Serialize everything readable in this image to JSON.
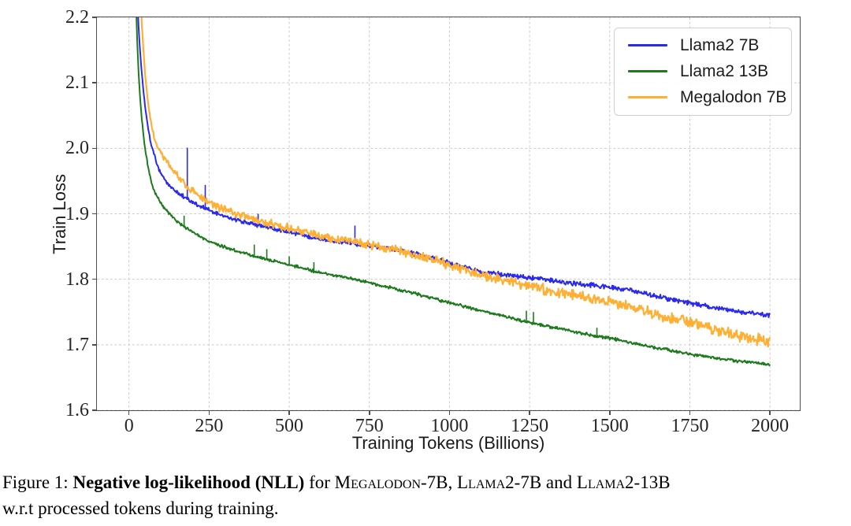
{
  "chart_data": {
    "type": "line",
    "title": "",
    "xlabel": "Training Tokens (Billions)",
    "ylabel": "Train Loss",
    "xlim": [
      -100,
      2093
    ],
    "ylim": [
      1.6,
      2.2
    ],
    "xticks": [
      0,
      250,
      500,
      750,
      1000,
      1250,
      1500,
      1750,
      2000
    ],
    "xtick_labels": [
      "0",
      "250",
      "500",
      "750",
      "1000",
      "1250",
      "1500",
      "1750",
      "2000"
    ],
    "yticks": [
      1.6,
      1.7,
      1.8,
      1.9,
      2.0,
      2.1,
      2.2
    ],
    "ytick_labels": [
      "1.6",
      "1.7",
      "1.8",
      "1.9",
      "2.0",
      "2.1",
      "2.2"
    ],
    "grid": "dashed",
    "grid_color": "#cccccc",
    "axis_color": "#4d4d4d",
    "legend_position": "upper right",
    "series": [
      {
        "name": "Llama2 7B",
        "color": "#2a2aee",
        "line_width": 2,
        "noise_amp": [
          0.004,
          0.0045
        ],
        "points": [
          [
            8,
            2.92
          ],
          [
            12,
            2.62
          ],
          [
            16,
            2.44
          ],
          [
            20,
            2.32
          ],
          [
            25,
            2.24
          ],
          [
            30,
            2.185
          ],
          [
            35,
            2.145
          ],
          [
            40,
            2.115
          ],
          [
            45,
            2.088
          ],
          [
            50,
            2.065
          ],
          [
            60,
            2.03
          ],
          [
            70,
            2.003
          ],
          [
            80,
            1.988
          ],
          [
            90,
            1.972
          ],
          [
            100,
            1.96
          ],
          [
            115,
            1.95
          ],
          [
            130,
            1.941
          ],
          [
            150,
            1.933
          ],
          [
            175,
            1.925
          ],
          [
            200,
            1.917
          ],
          [
            225,
            1.911
          ],
          [
            250,
            1.905
          ],
          [
            275,
            1.9
          ],
          [
            300,
            1.896
          ],
          [
            325,
            1.892
          ],
          [
            350,
            1.889
          ],
          [
            375,
            1.886
          ],
          [
            400,
            1.883
          ],
          [
            425,
            1.88
          ],
          [
            450,
            1.878
          ],
          [
            475,
            1.875
          ],
          [
            500,
            1.872
          ],
          [
            550,
            1.867
          ],
          [
            600,
            1.862
          ],
          [
            650,
            1.858
          ],
          [
            700,
            1.855
          ],
          [
            750,
            1.852
          ],
          [
            800,
            1.848
          ],
          [
            850,
            1.843
          ],
          [
            900,
            1.838
          ],
          [
            950,
            1.832
          ],
          [
            1000,
            1.825
          ],
          [
            1050,
            1.818
          ],
          [
            1100,
            1.812
          ],
          [
            1150,
            1.808
          ],
          [
            1200,
            1.805
          ],
          [
            1250,
            1.802
          ],
          [
            1300,
            1.799
          ],
          [
            1350,
            1.796
          ],
          [
            1400,
            1.793
          ],
          [
            1450,
            1.791
          ],
          [
            1500,
            1.788
          ],
          [
            1550,
            1.784
          ],
          [
            1600,
            1.779
          ],
          [
            1650,
            1.774
          ],
          [
            1700,
            1.768
          ],
          [
            1750,
            1.764
          ],
          [
            1800,
            1.759
          ],
          [
            1850,
            1.754
          ],
          [
            1900,
            1.751
          ],
          [
            1950,
            1.748
          ],
          [
            2000,
            1.745
          ]
        ],
        "spikes": [
          [
            182,
            2.001
          ],
          [
            238,
            1.944
          ],
          [
            403,
            1.9
          ],
          [
            705,
            1.882
          ]
        ]
      },
      {
        "name": "Llama2 13B",
        "color": "#1d7a1d",
        "line_width": 2,
        "noise_amp": [
          0.0028,
          0.0028
        ],
        "points": [
          [
            6,
            2.9
          ],
          [
            10,
            2.58
          ],
          [
            14,
            2.42
          ],
          [
            18,
            2.3
          ],
          [
            22,
            2.22
          ],
          [
            26,
            2.16
          ],
          [
            30,
            2.115
          ],
          [
            35,
            2.075
          ],
          [
            40,
            2.045
          ],
          [
            45,
            2.02
          ],
          [
            50,
            2.0
          ],
          [
            60,
            1.97
          ],
          [
            70,
            1.948
          ],
          [
            80,
            1.933
          ],
          [
            90,
            1.924
          ],
          [
            100,
            1.916
          ],
          [
            115,
            1.906
          ],
          [
            130,
            1.898
          ],
          [
            150,
            1.888
          ],
          [
            175,
            1.879
          ],
          [
            200,
            1.871
          ],
          [
            225,
            1.864
          ],
          [
            250,
            1.858
          ],
          [
            275,
            1.853
          ],
          [
            300,
            1.849
          ],
          [
            325,
            1.845
          ],
          [
            350,
            1.841
          ],
          [
            375,
            1.838
          ],
          [
            400,
            1.834
          ],
          [
            425,
            1.831
          ],
          [
            450,
            1.828
          ],
          [
            475,
            1.825
          ],
          [
            500,
            1.822
          ],
          [
            550,
            1.816
          ],
          [
            600,
            1.81
          ],
          [
            650,
            1.805
          ],
          [
            700,
            1.8
          ],
          [
            750,
            1.795
          ],
          [
            800,
            1.789
          ],
          [
            850,
            1.783
          ],
          [
            900,
            1.777
          ],
          [
            950,
            1.771
          ],
          [
            1000,
            1.764
          ],
          [
            1050,
            1.758
          ],
          [
            1100,
            1.752
          ],
          [
            1150,
            1.746
          ],
          [
            1200,
            1.74
          ],
          [
            1250,
            1.734
          ],
          [
            1300,
            1.729
          ],
          [
            1350,
            1.724
          ],
          [
            1400,
            1.719
          ],
          [
            1450,
            1.714
          ],
          [
            1500,
            1.71
          ],
          [
            1550,
            1.705
          ],
          [
            1600,
            1.7
          ],
          [
            1650,
            1.695
          ],
          [
            1700,
            1.69
          ],
          [
            1750,
            1.686
          ],
          [
            1800,
            1.682
          ],
          [
            1850,
            1.678
          ],
          [
            1900,
            1.675
          ],
          [
            1950,
            1.672
          ],
          [
            2000,
            1.67
          ]
        ],
        "spikes": [
          [
            172,
            1.897
          ],
          [
            391,
            1.853
          ],
          [
            430,
            1.846
          ],
          [
            500,
            1.835
          ],
          [
            577,
            1.826
          ],
          [
            1240,
            1.752
          ],
          [
            1262,
            1.75
          ],
          [
            1460,
            1.726
          ]
        ]
      },
      {
        "name": "Megalodon 7B",
        "color": "#ffaf33",
        "line_width": 2.2,
        "noise_amp": [
          0.006,
          0.011
        ],
        "points": [
          [
            10,
            2.95
          ],
          [
            15,
            2.7
          ],
          [
            20,
            2.52
          ],
          [
            25,
            2.4
          ],
          [
            30,
            2.31
          ],
          [
            35,
            2.245
          ],
          [
            40,
            2.19
          ],
          [
            45,
            2.15
          ],
          [
            50,
            2.115
          ],
          [
            60,
            2.067
          ],
          [
            70,
            2.035
          ],
          [
            80,
            2.012
          ],
          [
            90,
            2.0
          ],
          [
            100,
            1.993
          ],
          [
            115,
            1.982
          ],
          [
            130,
            1.971
          ],
          [
            150,
            1.958
          ],
          [
            175,
            1.945
          ],
          [
            200,
            1.934
          ],
          [
            225,
            1.925
          ],
          [
            250,
            1.917
          ],
          [
            275,
            1.911
          ],
          [
            300,
            1.906
          ],
          [
            325,
            1.901
          ],
          [
            350,
            1.897
          ],
          [
            375,
            1.893
          ],
          [
            400,
            1.89
          ],
          [
            425,
            1.887
          ],
          [
            450,
            1.884
          ],
          [
            475,
            1.881
          ],
          [
            500,
            1.878
          ],
          [
            550,
            1.872
          ],
          [
            600,
            1.866
          ],
          [
            650,
            1.861
          ],
          [
            700,
            1.857
          ],
          [
            750,
            1.853
          ],
          [
            800,
            1.848
          ],
          [
            850,
            1.843
          ],
          [
            900,
            1.837
          ],
          [
            950,
            1.83
          ],
          [
            1000,
            1.822
          ],
          [
            1050,
            1.814
          ],
          [
            1100,
            1.807
          ],
          [
            1150,
            1.8
          ],
          [
            1200,
            1.795
          ],
          [
            1250,
            1.79
          ],
          [
            1300,
            1.784
          ],
          [
            1350,
            1.779
          ],
          [
            1400,
            1.774
          ],
          [
            1450,
            1.77
          ],
          [
            1500,
            1.766
          ],
          [
            1550,
            1.759
          ],
          [
            1600,
            1.753
          ],
          [
            1650,
            1.747
          ],
          [
            1700,
            1.741
          ],
          [
            1750,
            1.734
          ],
          [
            1800,
            1.727
          ],
          [
            1850,
            1.721
          ],
          [
            1900,
            1.714
          ],
          [
            1950,
            1.709
          ],
          [
            2000,
            1.705
          ]
        ],
        "spikes": []
      }
    ]
  },
  "caption": {
    "line1_segments": [
      {
        "t": "Figure 1: ",
        "s": "n"
      },
      {
        "t": "Negative log-likelihood (NLL)",
        "s": "b"
      },
      {
        "t": " for ",
        "s": "n"
      },
      {
        "t": "Megalodon-7B",
        "s": "sc"
      },
      {
        "t": ", ",
        "s": "n"
      },
      {
        "t": "Llama2-7B",
        "s": "sc"
      },
      {
        "t": " and ",
        "s": "n"
      },
      {
        "t": "Llama2-13B",
        "s": "sc"
      }
    ],
    "line2": "w.r.t processed tokens during training."
  }
}
